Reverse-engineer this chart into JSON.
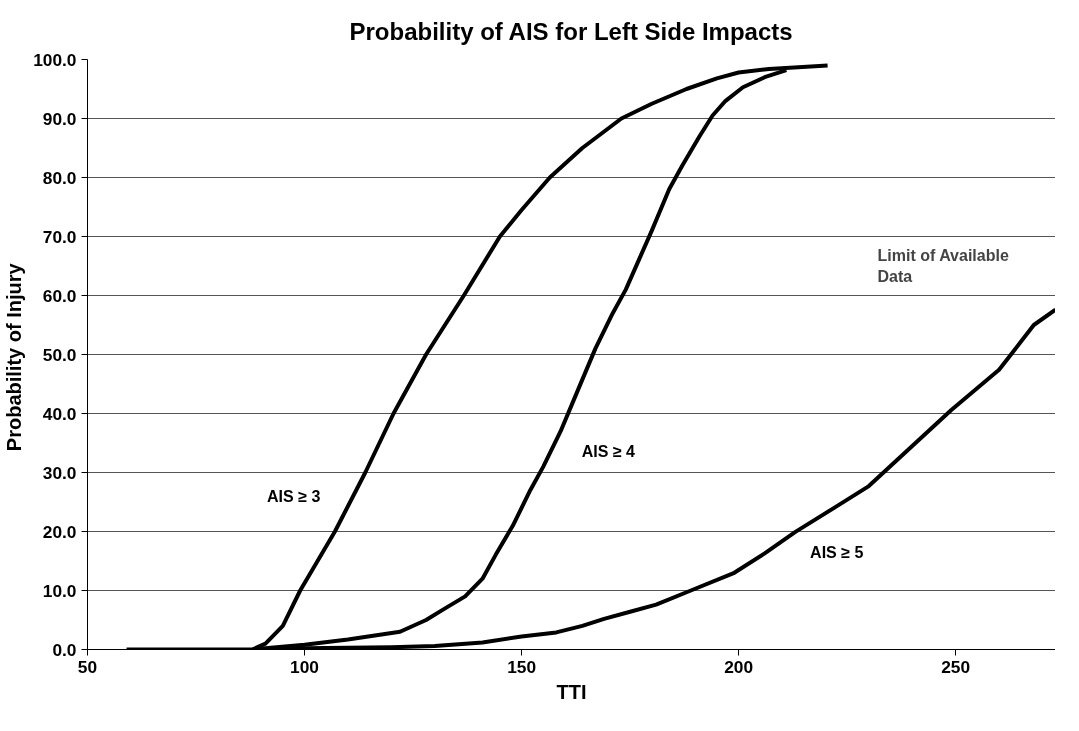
{
  "chart_data": {
    "type": "line",
    "title": "Probability of AIS for Left Side Impacts",
    "xlabel": "TTI",
    "ylabel": "Probability of  Injury",
    "xlim": [
      50,
      273
    ],
    "xticks": [
      50,
      100,
      150,
      200,
      250
    ],
    "ylim": [
      0,
      100
    ],
    "yticks": [
      {
        "value": 0,
        "label": "0.0"
      },
      {
        "value": 10,
        "label": "10.0"
      },
      {
        "value": 20,
        "label": "20.0"
      },
      {
        "value": 30,
        "label": "30.0"
      },
      {
        "value": 40,
        "label": "40.0"
      },
      {
        "value": 50,
        "label": "50.0"
      },
      {
        "value": 60,
        "label": "60.0"
      },
      {
        "value": 70,
        "label": "70.0"
      },
      {
        "value": 80,
        "label": "80.0"
      },
      {
        "value": 90,
        "label": "90.0"
      },
      {
        "value": 100,
        "label": "100.0"
      }
    ],
    "grid": "y",
    "marker": "none",
    "line_style": "solid",
    "annotations": [
      "Limit of Available Data"
    ],
    "series": [
      {
        "name": "AIS ≥ 3",
        "color": "#000000",
        "x": [
          59,
          88,
          91,
          95,
          99,
          103,
          107,
          114,
          120.5,
          128,
          136.7,
          145,
          150,
          156.5,
          164,
          173,
          180,
          188,
          195,
          200,
          207,
          220.5
        ],
        "values": [
          0,
          0,
          1,
          4,
          10,
          15,
          20,
          30,
          40,
          50,
          60,
          70,
          74.5,
          80,
          85,
          90,
          92.5,
          95,
          96.8,
          97.8,
          98.4,
          99
        ]
      },
      {
        "name": "AIS ≥ 4",
        "color": "#000000",
        "x": [
          88,
          100,
          110,
          122,
          128,
          132,
          137,
          141,
          144,
          148,
          152,
          155,
          159,
          163,
          167,
          171,
          174,
          177,
          180,
          184,
          187,
          191,
          194,
          197,
          201,
          206,
          211
        ],
        "values": [
          0,
          0.8,
          1.7,
          3,
          5,
          6.8,
          9,
          12,
          16,
          21,
          27,
          31,
          37,
          44,
          51,
          57,
          61,
          66,
          71,
          78,
          82,
          87,
          90.5,
          93,
          95.3,
          97,
          98.2
        ]
      },
      {
        "name": "AIS ≥ 5",
        "color": "#000000",
        "x": [
          90,
          100,
          120,
          130,
          141,
          150,
          158,
          164,
          169,
          175,
          181,
          189,
          199,
          206,
          213,
          222,
          230,
          240,
          249,
          260,
          268,
          273
        ],
        "values": [
          0,
          0.2,
          0.4,
          0.6,
          1.2,
          2.2,
          2.9,
          4,
          5.2,
          6.4,
          7.6,
          10,
          13,
          16.3,
          19.9,
          24,
          27.7,
          34.5,
          40.6,
          47.4,
          55,
          57.6
        ]
      }
    ]
  }
}
